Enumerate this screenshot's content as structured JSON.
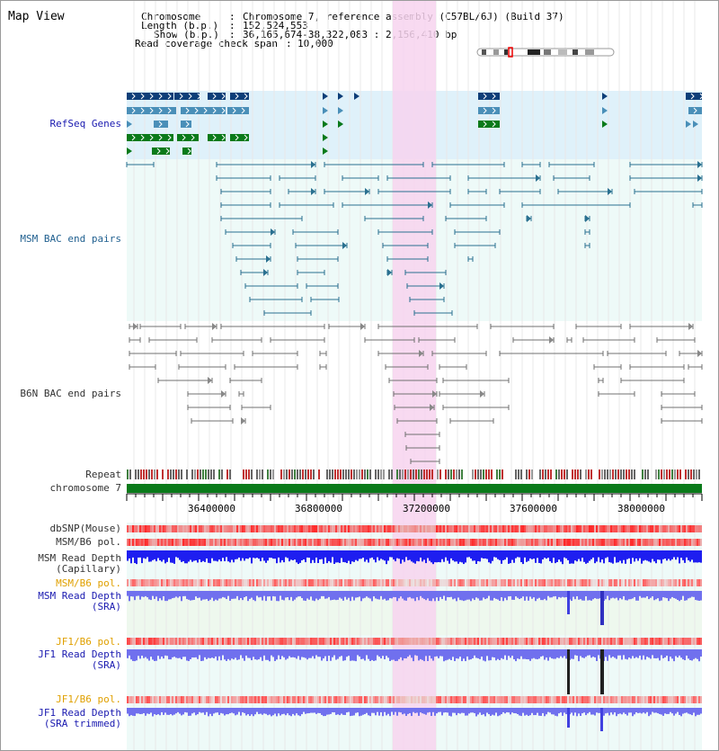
{
  "title": "Map View",
  "header": {
    "chromosome_label": "Chromosome",
    "chromosome_value": "Chromosome 7, reference assembly (C57BL/6J) (Build 37)",
    "length_label": "Length (b.p.)",
    "length_value": "152,524,553",
    "show_label": "Show (b.p.)",
    "show_value": "36,165,674-38,322,083 : 2,156,410 bp",
    "coverage_label": "Read coverage check span",
    "coverage_value": "10,000"
  },
  "tracks": {
    "refseq": "RefSeq Genes",
    "msm_bac": "MSM BAC end pairs",
    "b6n_bac": "B6N BAC end pairs",
    "repeat": "Repeat",
    "chromosome": "chromosome 7",
    "dbsnp": "dbSNP(Mouse)",
    "msm_b6_pol_1": "MSM/B6 pol.",
    "msm_depth_cap_1": "MSM Read Depth",
    "msm_depth_cap_2": "(Capillary)",
    "msm_b6_pol_2": "MSM/B6 pol.",
    "msm_depth_sra_1": "MSM Read Depth",
    "msm_depth_sra_2": "(SRA)",
    "jf1_b6_pol_1": "JF1/B6 pol.",
    "jf1_depth_sra_1": "JF1 Read Depth",
    "jf1_depth_sra_2": "(SRA)",
    "jf1_b6_pol_2": "JF1/B6 pol.",
    "jf1_depth_trim_1": "JF1 Read Depth",
    "jf1_depth_trim_2": "(SRA trimmed)"
  },
  "axis_ticks": [
    "36400000",
    "36800000",
    "37200000",
    "37600000",
    "38000000"
  ],
  "colors": {
    "refseq_bg": "#dff1fa",
    "bac_bg": "#eefaf8",
    "highlight": "#f7d3ef",
    "gene_navy": "#0d3e78",
    "gene_steel": "#4a8fb8",
    "gene_green": "#0a7a1a",
    "msm_line": "#2a7090",
    "b6n_line": "#707070",
    "snp_red": "#e03a3a",
    "depth_blue": "#1e1ef0",
    "depth_light": "#7070ee"
  }
}
